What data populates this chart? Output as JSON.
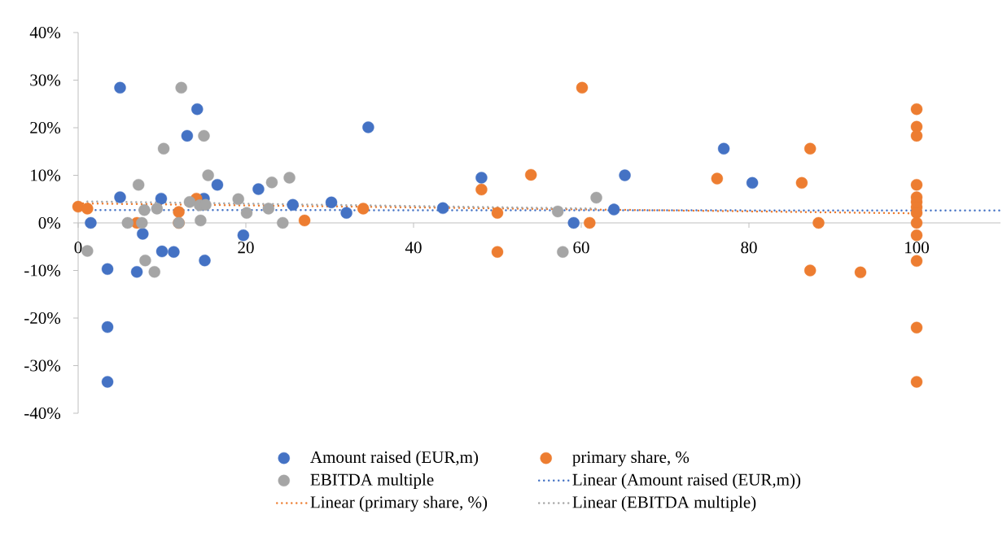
{
  "chart_data": {
    "type": "scatter",
    "xlim": [
      0,
      110
    ],
    "ylim": [
      -40,
      40
    ],
    "xticks": [
      0,
      20,
      40,
      60,
      80,
      100
    ],
    "yticks": [
      {
        "value": -40,
        "label": "-40%"
      },
      {
        "value": -30,
        "label": "-30%"
      },
      {
        "value": -20,
        "label": "-20%"
      },
      {
        "value": -10,
        "label": "-10%"
      },
      {
        "value": 0,
        "label": "0%"
      },
      {
        "value": 10,
        "label": "10%"
      },
      {
        "value": 20,
        "label": "20%"
      },
      {
        "value": 30,
        "label": "30%"
      },
      {
        "value": 40,
        "label": "40%"
      }
    ],
    "grid": false,
    "legend": "bottom",
    "series": [
      {
        "name": "Amount raised (EUR,m)",
        "marker": "circle",
        "color": "#4472c4",
        "x": [
          5.0,
          14.2,
          13.0,
          16.6,
          5.0,
          9.9,
          15.0,
          21.5,
          25.6,
          1.5,
          7.7,
          19.7,
          10.0,
          11.4,
          15.1,
          3.5,
          7.0,
          3.5,
          3.5,
          30.2,
          32.0,
          34.6,
          43.5,
          48.1,
          59.1,
          65.2,
          63.9,
          77.0,
          80.4
        ],
        "values": [
          28.4,
          23.9,
          18.3,
          8.0,
          5.4,
          5.1,
          5.1,
          7.1,
          3.8,
          0,
          -2.3,
          -2.6,
          -6.0,
          -6.1,
          -7.9,
          -9.7,
          -10.3,
          -21.9,
          -33.4,
          4.3,
          2.1,
          20.1,
          3.1,
          9.5,
          0,
          10.0,
          2.8,
          15.6,
          8.4
        ]
      },
      {
        "name": "primary share, %",
        "marker": "circle",
        "color": "#ed7d31",
        "x": [
          0,
          1.1,
          14.1,
          12.0,
          7.0,
          12.0,
          27.0,
          34.0,
          48.1,
          50.0,
          50.0,
          54.0,
          60.1,
          61.0,
          76.2,
          87.3,
          86.3,
          88.3,
          87.3,
          93.3,
          100,
          100,
          100,
          100,
          100,
          100,
          100,
          100,
          100,
          100,
          100,
          100,
          100
        ],
        "values": [
          3.4,
          3.0,
          5.1,
          2.3,
          0,
          0,
          0.5,
          3.0,
          7.0,
          2.1,
          -6.1,
          10.1,
          28.4,
          0,
          9.3,
          15.6,
          8.4,
          0,
          -10.0,
          -10.4,
          23.9,
          20.2,
          18.3,
          8.0,
          5.4,
          4.4,
          3.3,
          2.1,
          0,
          -2.6,
          -8.0,
          -22.0,
          -33.4
        ]
      },
      {
        "name": "EBITDA multiple",
        "marker": "circle",
        "color": "#a5a5a5",
        "x": [
          12.3,
          15.0,
          10.2,
          15.5,
          7.2,
          25.2,
          23.1,
          19.1,
          13.3,
          14.5,
          15.2,
          7.9,
          9.4,
          20.1,
          22.7,
          5.9,
          7.6,
          12.0,
          14.6,
          24.4,
          1.1,
          8.0,
          9.1,
          57.2,
          61.8,
          57.8
        ],
        "values": [
          28.4,
          18.3,
          15.6,
          10.0,
          8.0,
          9.5,
          8.5,
          5.0,
          4.4,
          3.7,
          3.8,
          2.7,
          3.0,
          2.1,
          3.0,
          0,
          0,
          0,
          0.5,
          0,
          -5.9,
          -7.9,
          -10.3,
          2.4,
          5.3,
          -6.1
        ]
      },
      {
        "name": "Linear (Amount raised (EUR,m))",
        "type": "line",
        "marker": "none",
        "line_style": "dotted",
        "color": "#4472c4",
        "x": [
          1.5,
          110
        ],
        "values": [
          2.7,
          2.6
        ]
      },
      {
        "name": "Linear (primary share, %)",
        "type": "line",
        "marker": "none",
        "line_style": "dotted",
        "color": "#ed7d31",
        "x": [
          0,
          100
        ],
        "values": [
          4.1,
          2.0
        ]
      },
      {
        "name": "Linear (EBITDA multiple)",
        "type": "line",
        "marker": "none",
        "line_style": "dotted",
        "color": "#a5a5a5",
        "x": [
          1.1,
          61.8
        ],
        "values": [
          4.5,
          3.0
        ]
      }
    ]
  }
}
